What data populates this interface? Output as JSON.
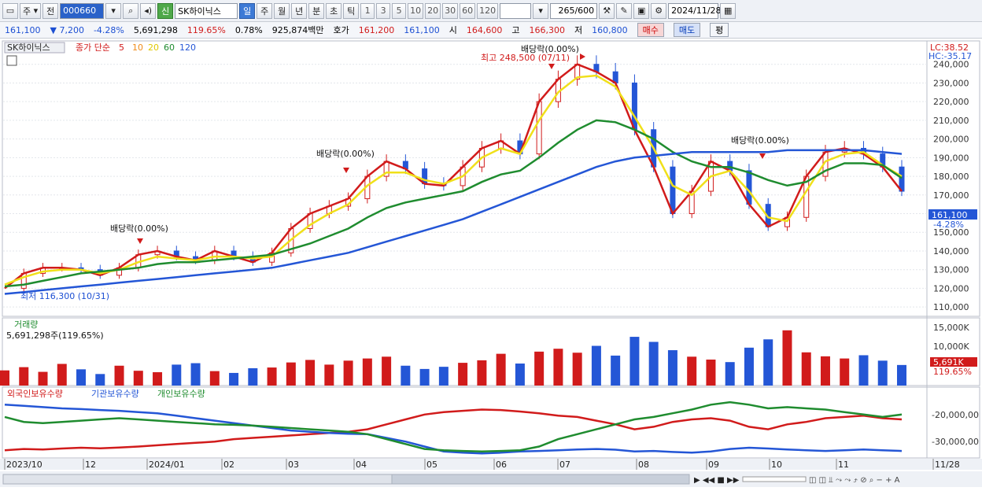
{
  "toolbar": {
    "period_main": "주",
    "prev": "전",
    "stock_code": "000660",
    "stock_name": "SK하이닉스",
    "new_badge": "신",
    "periods": [
      "일",
      "주",
      "월",
      "년",
      "분",
      "초",
      "틱"
    ],
    "numbers": [
      "1",
      "3",
      "5",
      "10",
      "20",
      "30",
      "60",
      "120"
    ],
    "count": "265",
    "count_total": "/600",
    "date": "2024/11/28"
  },
  "info": {
    "price": "161,100",
    "change": "▼ 7,200",
    "change_pct": "-4.28%",
    "volume": "5,691,298",
    "volume_ratio": "119.65%",
    "turnover": "0.78%",
    "amount": "925,874백만",
    "quote_label": "호가",
    "ask": "161,200",
    "bid": "161,100",
    "open_label": "시",
    "open": "164,600",
    "high_label": "고",
    "high": "166,300",
    "low_label": "저",
    "low": "160,800",
    "buy": "매수",
    "sell": "매도",
    "eval": "평"
  },
  "legend": {
    "name": "SK하이닉스",
    "series": "종가 단순",
    "ma": [
      "5",
      "10",
      "20",
      "60",
      "120"
    ],
    "ma_colors": [
      "#d11b1b",
      "#f08c1a",
      "#f0e01a",
      "#1f8c2f",
      "#2456d6"
    ]
  },
  "price_panel": {
    "lc": "LC:38.52",
    "hc": "HC:-35.17",
    "current_label": "161,100",
    "current_pct": "-4.28%",
    "high_note": "최고 248,500 (07/11)",
    "low_note": "최저 116,300 (10/31)",
    "dividend_note": "배당락(0.00%)"
  },
  "volume_panel": {
    "title": "거래량",
    "value": "5,691,298주(119.65%)",
    "ticks": [
      "15,000K",
      "10,000K",
      "5,000K"
    ],
    "current": "5,691K",
    "current_pct": "119.65%"
  },
  "holding_panel": {
    "foreign": "외국인보유수량",
    "institution": "기관보유수량",
    "individual": "개인보유수량",
    "ticks": [
      "-20,000,00",
      "-30,000,00"
    ]
  },
  "x_axis": [
    "2023/10",
    "12",
    "2024/01",
    "02",
    "03",
    "04",
    "05",
    "06",
    "07",
    "08",
    "09",
    "10",
    "11",
    "11/28"
  ],
  "chart_data": {
    "type": "line",
    "x_label_months": [
      "2023/10",
      "12",
      "2024/01",
      "02",
      "03",
      "04",
      "05",
      "06",
      "07",
      "08",
      "09",
      "10",
      "11"
    ],
    "y_ticks": [
      240000,
      230000,
      220000,
      210000,
      200000,
      190000,
      180000,
      170000,
      160000,
      150000,
      140000,
      130000,
      120000,
      110000
    ],
    "ylim": [
      105000,
      250000
    ],
    "series": [
      {
        "name": "종가 단순 5",
        "values": [
          120000,
          128000,
          131000,
          131000,
          130000,
          127000,
          131000,
          138000,
          140000,
          137000,
          135000,
          140000,
          137000,
          134000,
          139000,
          152000,
          160000,
          164000,
          168000,
          180000,
          188000,
          184000,
          176000,
          175000,
          185000,
          195000,
          199000,
          192000,
          220000,
          232000,
          240000,
          236000,
          230000,
          205000,
          185000,
          160000,
          172000,
          188000,
          183000,
          165000,
          153000,
          158000,
          180000,
          193000,
          195000,
          192000,
          185000,
          172000
        ]
      },
      {
        "name": "종가 단순 20",
        "values": [
          122000,
          126000,
          129000,
          130000,
          130000,
          128000,
          130000,
          134000,
          137000,
          136000,
          135000,
          137000,
          137000,
          136000,
          137000,
          146000,
          154000,
          160000,
          165000,
          175000,
          182000,
          182000,
          178000,
          176000,
          180000,
          190000,
          195000,
          192000,
          210000,
          225000,
          233000,
          234000,
          228000,
          212000,
          195000,
          175000,
          170000,
          180000,
          183000,
          172000,
          158000,
          156000,
          172000,
          188000,
          192000,
          193000,
          186000,
          180000
        ]
      },
      {
        "name": "종가 단순 60",
        "values": [
          121000,
          122000,
          124000,
          126000,
          128000,
          129000,
          130000,
          131000,
          133000,
          134000,
          134000,
          135000,
          136000,
          137000,
          138000,
          141000,
          144000,
          148000,
          152000,
          158000,
          163000,
          166000,
          168000,
          170000,
          172000,
          177000,
          181000,
          183000,
          190000,
          198000,
          205000,
          210000,
          209000,
          205000,
          200000,
          193000,
          188000,
          185000,
          185000,
          182000,
          178000,
          175000,
          177000,
          183000,
          187000,
          187000,
          186000,
          179000
        ]
      },
      {
        "name": "종가 단순 120",
        "values": [
          117000,
          118000,
          119000,
          120000,
          121000,
          122000,
          123000,
          124000,
          125000,
          126000,
          127000,
          128000,
          129000,
          130000,
          131000,
          133000,
          135000,
          137000,
          139000,
          142000,
          145000,
          148000,
          151000,
          154000,
          157000,
          161000,
          165000,
          169000,
          173000,
          177000,
          181000,
          185000,
          188000,
          190000,
          191000,
          192000,
          193000,
          193000,
          193000,
          193000,
          193000,
          194000,
          194000,
          194000,
          194000,
          194000,
          193000,
          192000
        ]
      }
    ],
    "volume_values": [
      4.2,
      5.1,
      3.8,
      6.0,
      4.5,
      3.2,
      5.5,
      4.1,
      3.7,
      5.8,
      6.2,
      4.0,
      3.5,
      4.8,
      5.0,
      6.4,
      7.1,
      5.8,
      6.9,
      7.5,
      8.0,
      5.5,
      4.6,
      5.2,
      6.3,
      7.0,
      8.8,
      6.1,
      9.4,
      10.2,
      9.1,
      11.0,
      8.3,
      13.5,
      12.1,
      9.8,
      8.0,
      7.2,
      6.5,
      10.5,
      12.8,
      15.3,
      9.2,
      8.1,
      7.5,
      8.4,
      6.9,
      5.7
    ],
    "foreign_values": [
      -34500,
      -34000,
      -34200,
      -33800,
      -33500,
      -33700,
      -33400,
      -33000,
      -32500,
      -32000,
      -31500,
      -31000,
      -30000,
      -29500,
      -29000,
      -28500,
      -28000,
      -27500,
      -27000,
      -26000,
      -24000,
      -22000,
      -20000,
      -19000,
      -18500,
      -18000,
      -18200,
      -18800,
      -19500,
      -20500,
      -21000,
      -22500,
      -24000,
      -26000,
      -25000,
      -23000,
      -22000,
      -21500,
      -22500,
      -25000,
      -26000,
      -24000,
      -23000,
      -21500,
      -21000,
      -20500,
      -21500,
      -22000
    ],
    "institution_values": [
      -16000,
      -16500,
      -17000,
      -17500,
      -17800,
      -18200,
      -18500,
      -19000,
      -19500,
      -20500,
      -21500,
      -22500,
      -23500,
      -24500,
      -25500,
      -26500,
      -27000,
      -27500,
      -27800,
      -28000,
      -29500,
      -31000,
      -33000,
      -35000,
      -35500,
      -35800,
      -35500,
      -35000,
      -34800,
      -34500,
      -34200,
      -34000,
      -34300,
      -35000,
      -34800,
      -35200,
      -35500,
      -35000,
      -34000,
      -33500,
      -33800,
      -34200,
      -34500,
      -34800,
      -34500,
      -34200,
      -34500,
      -34800
    ],
    "individual_values": [
      -21000,
      -23000,
      -23500,
      -23000,
      -22500,
      -22000,
      -21500,
      -22000,
      -22500,
      -23000,
      -23500,
      -24000,
      -24200,
      -24500,
      -25000,
      -25500,
      -26000,
      -26500,
      -27000,
      -28000,
      -30000,
      -32000,
      -34000,
      -34500,
      -34800,
      -35000,
      -34800,
      -34500,
      -33000,
      -30000,
      -28000,
      -26000,
      -24000,
      -22000,
      -21000,
      -19500,
      -18000,
      -16000,
      -15000,
      -16000,
      -17500,
      -17000,
      -17500,
      -18000,
      -19000,
      -20000,
      -21000,
      -20000
    ]
  }
}
